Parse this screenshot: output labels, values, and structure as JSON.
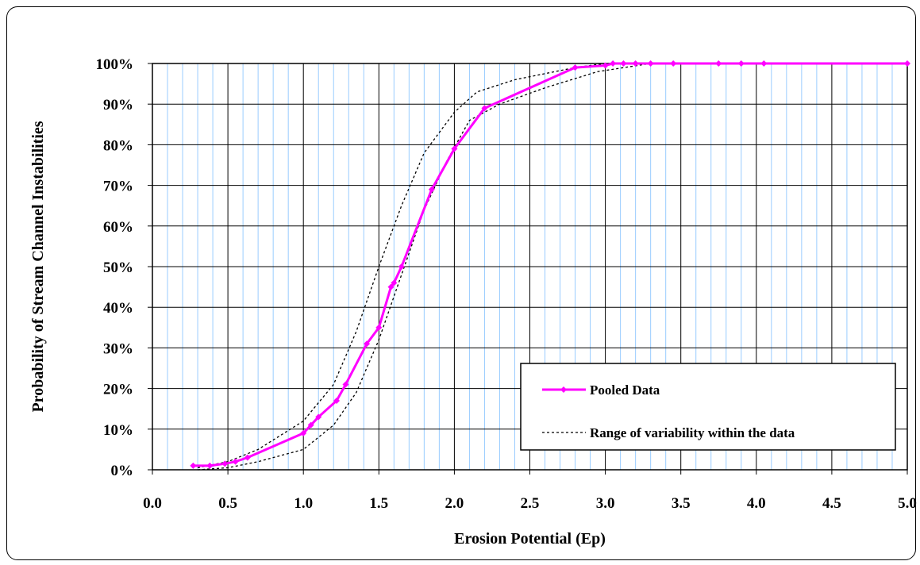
{
  "chart_data": {
    "type": "line",
    "xlabel": "Erosion Potential (Ep)",
    "ylabel": "Probability of Stream Channel Instabilities",
    "xlim": [
      0.0,
      5.0
    ],
    "ylim": [
      0,
      100
    ],
    "x_ticks": [
      "0.0",
      "0.5",
      "1.0",
      "1.5",
      "2.0",
      "2.5",
      "3.0",
      "3.5",
      "4.0",
      "4.5",
      "5.0"
    ],
    "y_ticks": [
      "0%",
      "10%",
      "20%",
      "30%",
      "40%",
      "50%",
      "60%",
      "70%",
      "80%",
      "90%",
      "100%"
    ],
    "grid": true,
    "legend_position": "bottom-right",
    "colors": {
      "pooled": "#ff00ff",
      "range": "#000000",
      "minor_grid": "#99ccff",
      "major_grid": "#000000"
    },
    "series": [
      {
        "name": "Pooled Data",
        "style": "solid-marker",
        "x": [
          0.27,
          0.38,
          0.48,
          0.55,
          0.63,
          1.0,
          1.05,
          1.1,
          1.22,
          1.28,
          1.42,
          1.5,
          1.58,
          1.6,
          1.65,
          1.85,
          2.0,
          2.2,
          2.8,
          3.0,
          3.05,
          3.12,
          3.2,
          3.3,
          3.45,
          3.75,
          3.9,
          4.05,
          5.0
        ],
        "y": [
          1,
          1,
          1.5,
          2,
          3,
          9,
          11,
          13,
          17,
          21,
          31,
          35,
          45,
          46,
          50,
          69,
          79,
          89,
          99,
          99.5,
          100,
          100,
          100,
          100,
          100,
          100,
          100,
          100,
          100
        ]
      },
      {
        "name": "Range of variability within the data",
        "style": "dotted",
        "x": [
          0.3,
          0.5,
          0.7,
          1.0,
          1.2,
          1.35,
          1.5,
          1.65,
          1.8,
          2.0,
          2.15,
          2.4,
          2.8,
          3.0,
          3.3,
          5.0
        ],
        "y": [
          0.5,
          2,
          5,
          12,
          21,
          34,
          50,
          65,
          78,
          88,
          93,
          96,
          99,
          100,
          100,
          100
        ]
      },
      {
        "style": "dotted",
        "x": [
          0.3,
          0.5,
          0.7,
          1.0,
          1.2,
          1.35,
          1.5,
          1.65,
          1.8,
          1.95,
          2.1,
          2.3,
          2.6,
          2.95,
          3.3,
          5.0
        ],
        "y": [
          0,
          0.5,
          2,
          5,
          11,
          19,
          32,
          48,
          64,
          76,
          86,
          90,
          94,
          98,
          100,
          100
        ]
      }
    ]
  }
}
